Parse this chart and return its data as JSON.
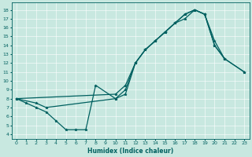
{
  "xlabel": "Humidex (Indice chaleur)",
  "bg_color": "#c8e8e0",
  "line_color": "#006060",
  "xlim": [
    -0.5,
    23.5
  ],
  "ylim": [
    3.5,
    18.8
  ],
  "xticks": [
    0,
    1,
    2,
    3,
    4,
    5,
    6,
    7,
    8,
    9,
    10,
    11,
    12,
    13,
    14,
    15,
    16,
    17,
    18,
    19,
    20,
    21,
    22,
    23
  ],
  "yticks": [
    4,
    5,
    6,
    7,
    8,
    9,
    10,
    11,
    12,
    13,
    14,
    15,
    16,
    17,
    18
  ],
  "line1_x": [
    0,
    1,
    2,
    3,
    4,
    5,
    6,
    7,
    8,
    10,
    11,
    12,
    13,
    14,
    15,
    16,
    17,
    18,
    19,
    20,
    21
  ],
  "line1_y": [
    8.0,
    7.5,
    7.0,
    6.5,
    5.5,
    4.5,
    4.5,
    4.5,
    9.5,
    8.0,
    8.5,
    12.0,
    13.5,
    14.5,
    15.5,
    16.5,
    17.0,
    18.0,
    17.5,
    14.5,
    12.5
  ],
  "line2_x": [
    0,
    2,
    3,
    10,
    11,
    12,
    13,
    14,
    15,
    16,
    17,
    18,
    19,
    20,
    21,
    23
  ],
  "line2_y": [
    8.0,
    7.5,
    7.0,
    8.0,
    9.0,
    12.0,
    13.5,
    14.5,
    15.5,
    16.5,
    17.5,
    18.0,
    17.5,
    14.0,
    12.5,
    11.0
  ],
  "line3_x": [
    0,
    10,
    11,
    12,
    13,
    14,
    15,
    16,
    17,
    18,
    19,
    20,
    21,
    23
  ],
  "line3_y": [
    8.0,
    8.5,
    9.5,
    12.0,
    13.5,
    14.5,
    15.5,
    16.5,
    17.5,
    18.0,
    17.5,
    14.0,
    12.5,
    11.0
  ],
  "marker": "*",
  "marker_size": 2.5,
  "linewidth": 0.9
}
